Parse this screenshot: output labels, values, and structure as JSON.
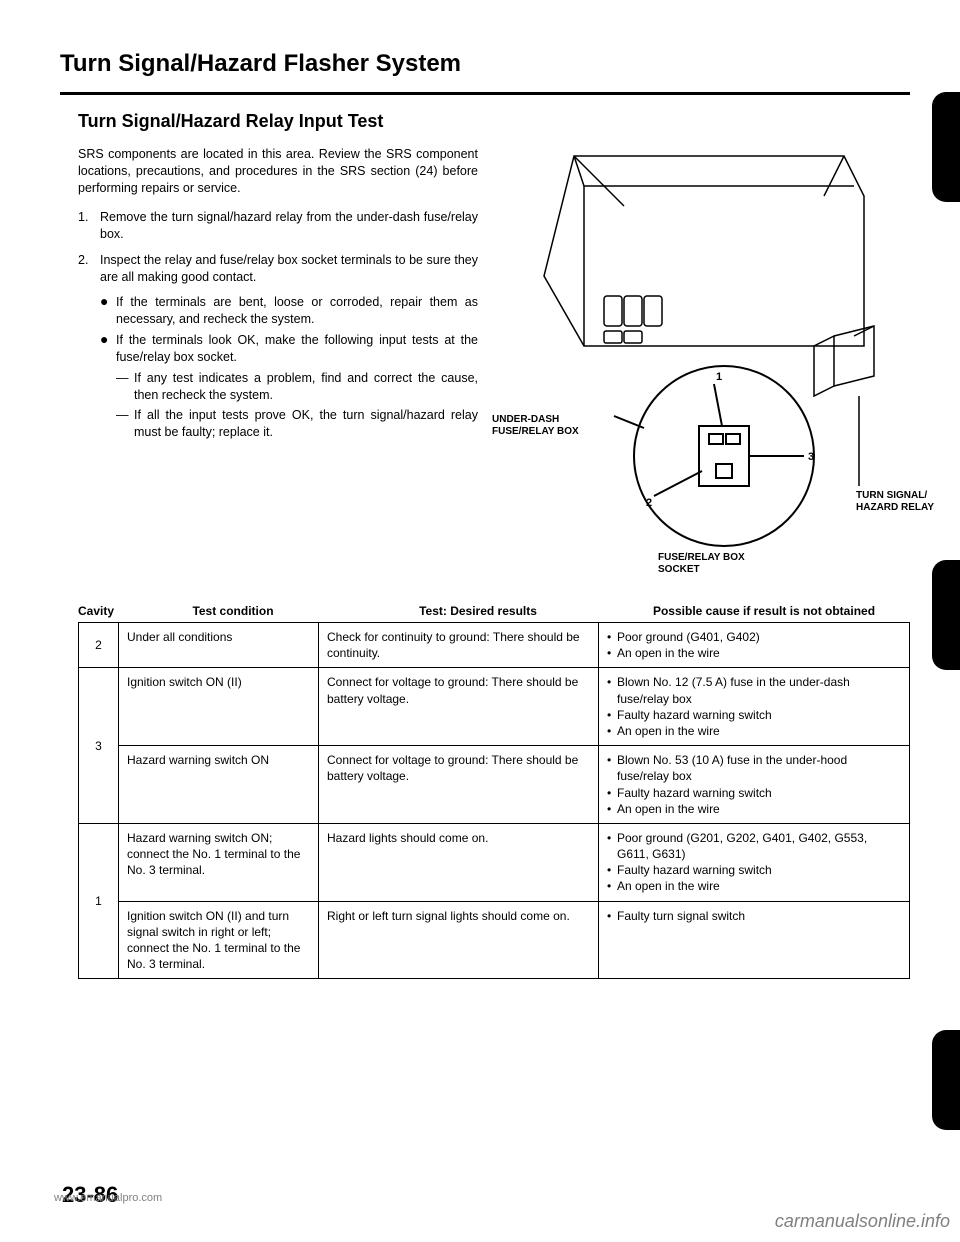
{
  "page_title": "Turn Signal/Hazard Flasher System",
  "subtitle": "Turn Signal/Hazard Relay Input Test",
  "intro": "SRS components are located in this area. Review the SRS component locations, precautions, and procedures in the SRS section (24) before performing repairs or service.",
  "steps": [
    {
      "num": "1.",
      "text": "Remove the turn signal/hazard relay from the under-dash fuse/relay box."
    },
    {
      "num": "2.",
      "text": "Inspect the relay and fuse/relay box socket terminals to be sure they are all making good contact."
    }
  ],
  "bullets": [
    "If the terminals are bent, loose or corroded, repair them as necessary, and recheck the system.",
    "If the terminals look OK, make the following input tests at the fuse/relay box socket."
  ],
  "dashes": [
    "If any test indicates a problem, find and correct the cause, then recheck the system.",
    "If all the input tests prove OK, the turn signal/hazard relay must be faulty; replace it."
  ],
  "diagram": {
    "label_underdash": "UNDER-DASH\nFUSE/RELAY BOX",
    "label_relay": "TURN SIGNAL/\nHAZARD RELAY",
    "label_socket": "FUSE/RELAY BOX\nSOCKET",
    "n1": "1",
    "n2": "2",
    "n3": "3"
  },
  "table": {
    "headers": {
      "cavity": "Cavity",
      "condition": "Test condition",
      "desired": "Test: Desired results",
      "cause": "Possible cause if result is not obtained"
    },
    "rows": [
      {
        "cavity": "2",
        "condition": "Under all conditions",
        "desired": "Check for continuity to ground: There should be continuity.",
        "causes": [
          "Poor ground (G401, G402)",
          "An open in the wire"
        ],
        "rowspan_cav": 1
      },
      {
        "cavity": "3",
        "condition": "Ignition switch ON (II)",
        "desired": "Connect for voltage to ground: There should be battery voltage.",
        "causes": [
          "Blown No. 12 (7.5 A) fuse in the under-dash fuse/relay box",
          "Faulty hazard warning switch",
          "An open in the wire"
        ],
        "rowspan_cav": 2
      },
      {
        "condition": "Hazard warning switch ON",
        "desired": "Connect for voltage to ground: There should be battery voltage.",
        "causes": [
          "Blown No. 53 (10 A) fuse in the under-hood fuse/relay box",
          "Faulty hazard warning switch",
          "An open in the wire"
        ]
      },
      {
        "cavity": "1",
        "condition": "Hazard warning switch ON; connect the No. 1 terminal to the No. 3 terminal.",
        "desired": "Hazard lights should come on.",
        "causes": [
          "Poor ground (G201, G202, G401, G402, G553, G611, G631)",
          "Faulty hazard warning switch",
          "An open in the wire"
        ],
        "rowspan_cav": 2
      },
      {
        "condition": "Ignition switch ON (II) and turn signal switch in right or left; connect the No. 1 terminal to the No. 3 terminal.",
        "desired": "Right or left turn signal lights should come on.",
        "causes": [
          "Faulty turn signal switch"
        ]
      }
    ]
  },
  "page_number": "23-86",
  "watermark_left": "www.emanualpro.com",
  "watermark_right": "carmanualsonline.info"
}
